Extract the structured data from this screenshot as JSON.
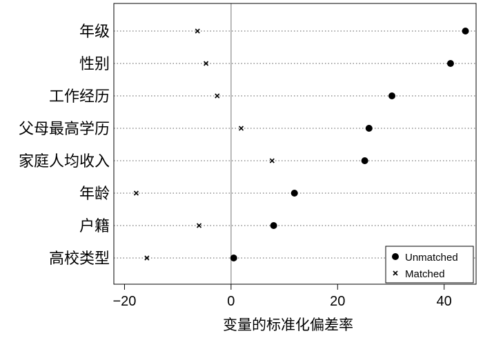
{
  "chart_data": {
    "type": "scatter",
    "orientation": "horizontal-dot-plot",
    "categories": [
      "年级",
      "性别",
      "工作经历",
      "父母最高学历",
      "家庭人均收入",
      "年龄",
      "户籍",
      "高校类型"
    ],
    "series": [
      {
        "name": "Unmatched",
        "marker": "filled-circle",
        "color": "#000000",
        "values": [
          44.0,
          41.2,
          30.2,
          25.9,
          25.1,
          11.9,
          8.0,
          0.5
        ]
      },
      {
        "name": "Matched",
        "marker": "x",
        "color": "#000000",
        "values": [
          -6.3,
          -4.7,
          -2.6,
          1.9,
          7.7,
          -17.8,
          -6.0,
          -15.8
        ]
      }
    ],
    "xlabel": "变量的标准化偏差率",
    "ylabel": "",
    "xlim": [
      -22,
      46
    ],
    "xticks": [
      -20,
      0,
      20,
      40
    ],
    "xtick_labels": [
      "−20",
      "0",
      "20",
      "40"
    ],
    "reference_line_x": 0,
    "reference_line_color": "#a0a0a0",
    "grid": "dotted horizontal lines at each category",
    "legend_position": "bottom-right"
  }
}
